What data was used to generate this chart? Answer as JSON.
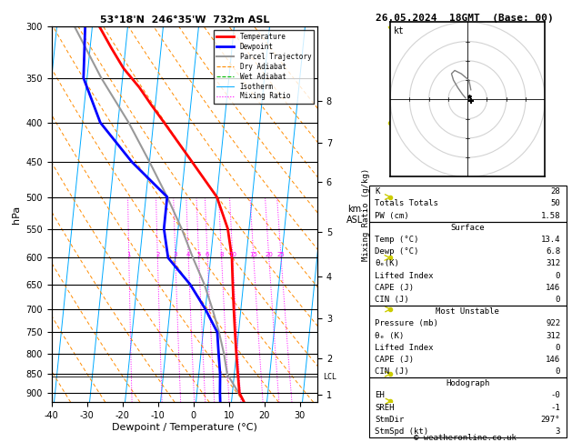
{
  "title_left": "53°18'N  246°35'W  732m ASL",
  "title_right": "26.05.2024  18GMT  (Base: 00)",
  "xlabel": "Dewpoint / Temperature (°C)",
  "ylabel_left": "hPa",
  "bg_color": "#ffffff",
  "pressure_levels": [
    300,
    350,
    400,
    450,
    500,
    550,
    600,
    650,
    700,
    750,
    800,
    850,
    900
  ],
  "pressure_min": 300,
  "pressure_max": 925,
  "temp_min": -40,
  "temp_max": 35,
  "isotherm_color": "#00aaff",
  "dry_adiabat_color": "#ff8c00",
  "wet_adiabat_color": "#00bb00",
  "mixing_ratio_color": "#ff00ff",
  "temp_line_color": "#ff0000",
  "dewp_line_color": "#0000ff",
  "parcel_color": "#999999",
  "wind_color": "#cccc00",
  "skew_factor": 22,
  "legend_items": [
    {
      "label": "Temperature",
      "color": "#ff0000",
      "style": "solid",
      "lw": 2.0
    },
    {
      "label": "Dewpoint",
      "color": "#0000ff",
      "style": "solid",
      "lw": 2.0
    },
    {
      "label": "Parcel Trajectory",
      "color": "#999999",
      "style": "solid",
      "lw": 1.5
    },
    {
      "label": "Dry Adiabat",
      "color": "#ff8c00",
      "style": "dashed",
      "lw": 0.8
    },
    {
      "label": "Wet Adiabat",
      "color": "#00bb00",
      "style": "dashed",
      "lw": 0.8
    },
    {
      "label": "Isotherm",
      "color": "#00aaff",
      "style": "solid",
      "lw": 0.7
    },
    {
      "label": "Mixing Ratio",
      "color": "#ff00ff",
      "style": "dotted",
      "lw": 0.8
    }
  ],
  "temp_profile": {
    "pressure": [
      300,
      320,
      340,
      360,
      380,
      400,
      450,
      500,
      550,
      600,
      650,
      700,
      750,
      800,
      850,
      900,
      922
    ],
    "temp": [
      -38,
      -34,
      -30,
      -25,
      -21,
      -17,
      -8,
      0,
      4,
      6,
      7,
      8,
      9,
      10,
      11,
      12,
      13.4
    ]
  },
  "dewp_profile": {
    "pressure": [
      300,
      350,
      400,
      450,
      500,
      550,
      600,
      650,
      700,
      750,
      800,
      850,
      900,
      922
    ],
    "temp": [
      -42,
      -41,
      -35,
      -25,
      -14,
      -14,
      -12,
      -5,
      0,
      4,
      5,
      6,
      6.5,
      6.8
    ]
  },
  "parcel_profile": {
    "pressure": [
      922,
      850,
      800,
      750,
      700,
      650,
      600,
      550,
      500,
      450,
      400,
      350,
      300
    ],
    "temp": [
      13.4,
      8,
      6.5,
      4.5,
      2,
      -1,
      -5,
      -9,
      -14,
      -20,
      -27,
      -36,
      -45
    ]
  },
  "mixing_ratios": [
    1,
    2,
    3,
    4,
    5,
    6,
    8,
    10,
    15,
    20,
    25
  ],
  "km_ticks": [
    1,
    2,
    3,
    4,
    5,
    6,
    7,
    8
  ],
  "km_pressures": [
    905,
    810,
    720,
    635,
    555,
    478,
    425,
    375
  ],
  "lcl_pressure": 857,
  "wind_barbs": {
    "pressure": [
      922,
      850,
      700,
      600,
      500,
      400,
      300
    ],
    "u": [
      1,
      1,
      2,
      1,
      1,
      0,
      -1
    ],
    "v": [
      1,
      2,
      3,
      3,
      2,
      1,
      1
    ]
  },
  "stats": {
    "K": 28,
    "TT": 50,
    "PW": "1.58",
    "surf_temp": "13.4",
    "surf_dewp": "6.8",
    "surf_thetae": "312",
    "surf_li": "0",
    "surf_cape": "146",
    "surf_cin": "0",
    "mu_pressure": "922",
    "mu_thetae": "312",
    "mu_li": "0",
    "mu_cape": "146",
    "mu_cin": "0",
    "EH": "-0",
    "SREH": "-1",
    "StmDir": "297°",
    "StmSpd": "3"
  },
  "hodo_spiral_u": [
    -0.3,
    -0.8,
    -1.5,
    -2.2,
    -2.5,
    -2.0,
    -1.0,
    0.2,
    0.5
  ],
  "hodo_spiral_v": [
    0.2,
    0.8,
    1.8,
    3.0,
    4.0,
    4.5,
    4.0,
    3.0,
    1.5
  ]
}
